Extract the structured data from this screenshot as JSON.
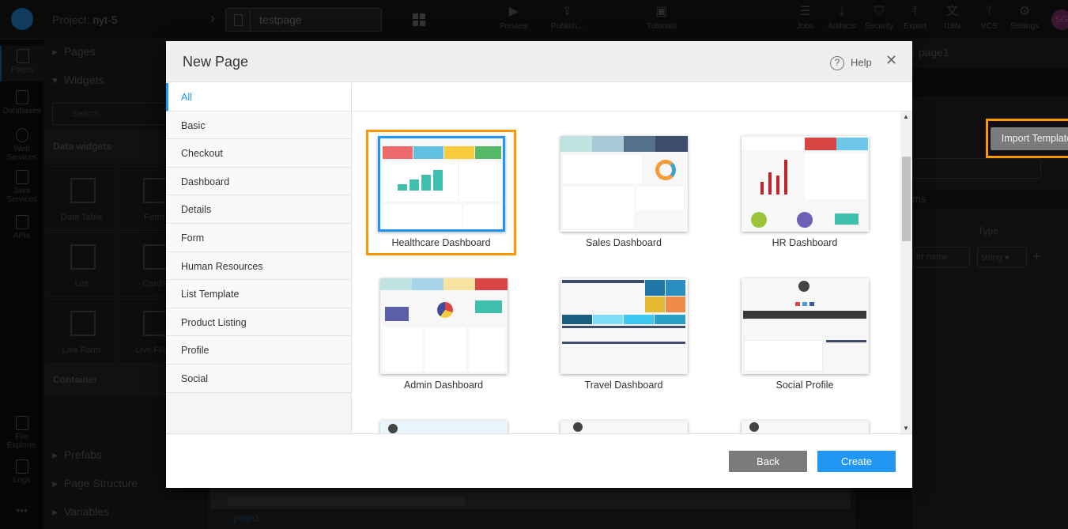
{
  "topbar": {
    "project_label": "Project:",
    "project_name": "nyt-5",
    "page_name": "testpage",
    "actions": [
      {
        "label": "Preview",
        "icon": "play-icon"
      },
      {
        "label": "Publish...",
        "icon": "publish-icon"
      },
      {
        "label": "Tutorials",
        "icon": "youtube-icon"
      },
      {
        "label": "Jobs",
        "icon": "jobs-icon"
      },
      {
        "label": "Artifacts",
        "icon": "download-icon"
      },
      {
        "label": "Security",
        "icon": "shield-icon"
      },
      {
        "label": "Export",
        "icon": "upload-icon"
      },
      {
        "label": "I18N",
        "icon": "translate-icon"
      },
      {
        "label": "VCS",
        "icon": "branch-icon"
      },
      {
        "label": "Settings",
        "icon": "gear-icon"
      }
    ],
    "avatar": "SG"
  },
  "rail": {
    "items": [
      "Pages",
      "Databases",
      "Web Services",
      "Java Services",
      "APIs",
      "File Explorer",
      "Logs",
      "•••"
    ]
  },
  "panel": {
    "pages": "Pages",
    "widgets": "Widgets",
    "search_placeholder": "Search...",
    "data_widgets": "Data widgets",
    "widget_items": [
      "Data Table",
      "Form",
      "List",
      "Cards",
      "Live Form",
      "Live Filter"
    ],
    "container": "Container",
    "prefabs": "Prefabs",
    "page_structure": "Page Structure",
    "variables": "Variables"
  },
  "canvas": {
    "page_tab": "page1"
  },
  "right_panel": {
    "title": ": page1",
    "section": "ms",
    "type_header": "Type",
    "param_placeholder": "er name",
    "type_value": "string"
  },
  "modal": {
    "title": "New Page",
    "help": "Help",
    "import_template": "Import Template",
    "categories": [
      "All",
      "Basic",
      "Checkout",
      "Dashboard",
      "Details",
      "Form",
      "Human Resources",
      "List Template",
      "Product Listing",
      "Profile",
      "Social"
    ],
    "active_category": "All",
    "templates": [
      "Healthcare Dashboard",
      "Sales Dashboard",
      "HR Dashboard",
      "Admin Dashboard",
      "Travel Dashboard",
      "Social Profile"
    ],
    "selected_template": "Healthcare Dashboard",
    "back": "Back",
    "create": "Create"
  },
  "colors": {
    "accent": "#2196f3",
    "highlight": "#ff9800",
    "secondary_button": "#7b7b7b"
  }
}
